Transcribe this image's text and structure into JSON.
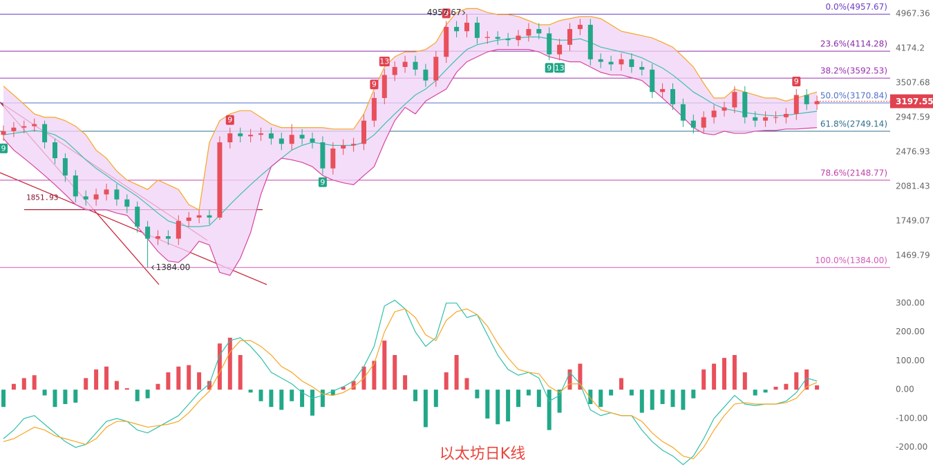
{
  "chart_data": [
    {
      "type": "candlestick",
      "log_scale": true,
      "ylim": [
        1324,
        5325
      ],
      "yticks": [
        4967.36,
        4174.2,
        3507.68,
        2947.59,
        2476.93,
        2081.43,
        1749.07,
        1469.79
      ],
      "up_color": "#e8505b",
      "down_color": "#22a889",
      "ohlc": [
        [
          2700,
          2830,
          2620,
          2750
        ],
        [
          2750,
          2880,
          2670,
          2800
        ],
        [
          2800,
          2900,
          2720,
          2820
        ],
        [
          2820,
          2930,
          2740,
          2850
        ],
        [
          2850,
          2900,
          2520,
          2600
        ],
        [
          2600,
          2650,
          2330,
          2400
        ],
        [
          2400,
          2460,
          2130,
          2200
        ],
        [
          2200,
          2260,
          1920,
          1980
        ],
        [
          1980,
          2040,
          1890,
          1950
        ],
        [
          1950,
          2060,
          1890,
          2000
        ],
        [
          2000,
          2110,
          1940,
          2050
        ],
        [
          2050,
          2110,
          1890,
          1950
        ],
        [
          1950,
          2000,
          1820,
          1880
        ],
        [
          1880,
          1930,
          1650,
          1700
        ],
        [
          1700,
          1750,
          1384,
          1600
        ],
        [
          1600,
          1670,
          1550,
          1620
        ],
        [
          1620,
          1670,
          1550,
          1600
        ],
        [
          1600,
          1800,
          1550,
          1750
        ],
        [
          1750,
          1830,
          1700,
          1780
        ],
        [
          1780,
          1850,
          1730,
          1800
        ],
        [
          1800,
          1850,
          1720,
          1780
        ],
        [
          1780,
          2680,
          1760,
          2600
        ],
        [
          2600,
          2800,
          2520,
          2720
        ],
        [
          2720,
          2800,
          2600,
          2680
        ],
        [
          2680,
          2780,
          2600,
          2700
        ],
        [
          2700,
          2800,
          2620,
          2720
        ],
        [
          2720,
          2800,
          2570,
          2650
        ],
        [
          2650,
          2730,
          2500,
          2580
        ],
        [
          2580,
          2850,
          2500,
          2700
        ],
        [
          2700,
          2780,
          2570,
          2650
        ],
        [
          2650,
          2730,
          2520,
          2600
        ],
        [
          2600,
          2680,
          2210,
          2280
        ],
        [
          2280,
          2600,
          2210,
          2520
        ],
        [
          2520,
          2640,
          2440,
          2560
        ],
        [
          2560,
          2660,
          2480,
          2580
        ],
        [
          2580,
          2990,
          2500,
          2900
        ],
        [
          2900,
          3350,
          2810,
          3250
        ],
        [
          3250,
          3760,
          3150,
          3650
        ],
        [
          3650,
          3910,
          3540,
          3800
        ],
        [
          3800,
          4020,
          3690,
          3900
        ],
        [
          3900,
          4020,
          3640,
          3750
        ],
        [
          3750,
          3860,
          3440,
          3550
        ],
        [
          3550,
          4120,
          3440,
          4000
        ],
        [
          4000,
          4790,
          3880,
          4650
        ],
        [
          4650,
          4790,
          4410,
          4550
        ],
        [
          4550,
          4957.67,
          4410,
          4750
        ],
        [
          4750,
          4890,
          4270,
          4400
        ],
        [
          4400,
          4550,
          4270,
          4420
        ],
        [
          4420,
          4550,
          4250,
          4380
        ],
        [
          4380,
          4510,
          4220,
          4350
        ],
        [
          4350,
          4580,
          4220,
          4450
        ],
        [
          4450,
          4740,
          4320,
          4600
        ],
        [
          4600,
          4740,
          4370,
          4500
        ],
        [
          4500,
          4640,
          3930,
          4050
        ],
        [
          4050,
          4380,
          3930,
          4250
        ],
        [
          4250,
          4740,
          4120,
          4600
        ],
        [
          4600,
          4840,
          4460,
          4700
        ],
        [
          4700,
          4840,
          3830,
          3950
        ],
        [
          3950,
          4070,
          3780,
          3900
        ],
        [
          3900,
          4020,
          3730,
          3850
        ],
        [
          3850,
          4070,
          3730,
          3950
        ],
        [
          3950,
          4070,
          3690,
          3800
        ],
        [
          3800,
          3910,
          3640,
          3750
        ],
        [
          3750,
          3860,
          3250,
          3350
        ],
        [
          3350,
          3500,
          3250,
          3400
        ],
        [
          3400,
          3500,
          3060,
          3150
        ],
        [
          3150,
          3240,
          2810,
          2900
        ],
        [
          2900,
          2990,
          2720,
          2800
        ],
        [
          2800,
          3040,
          2720,
          2950
        ],
        [
          2950,
          3140,
          2860,
          3050
        ],
        [
          3050,
          3190,
          2960,
          3100
        ],
        [
          3100,
          3450,
          3010,
          3350
        ],
        [
          3350,
          3450,
          2860,
          2950
        ],
        [
          2950,
          3040,
          2810,
          2900
        ],
        [
          2900,
          3040,
          2810,
          2950
        ],
        [
          2950,
          3040,
          2860,
          2950
        ],
        [
          2950,
          3090,
          2860,
          3000
        ],
        [
          3000,
          3400,
          2910,
          3300
        ],
        [
          3300,
          3400,
          3060,
          3150
        ],
        [
          3150,
          3290,
          3060,
          3197.55
        ]
      ],
      "boll_upper": {
        "color": "#f5a623",
        "values": [
          3450,
          3300,
          3150,
          3000,
          2950,
          2950,
          2900,
          2820,
          2700,
          2500,
          2400,
          2250,
          2150,
          2100,
          2050,
          2150,
          2100,
          2050,
          1900,
          1850,
          2600,
          2900,
          3000,
          3050,
          3050,
          2950,
          2850,
          2800,
          2800,
          2800,
          2800,
          2800,
          2780,
          2780,
          2780,
          3000,
          3400,
          3800,
          4000,
          4100,
          4100,
          4150,
          4300,
          4700,
          5000,
          5100,
          5100,
          5000,
          4950,
          4950,
          4900,
          4800,
          4700,
          4700,
          4800,
          4850,
          4900,
          4900,
          4850,
          4700,
          4550,
          4500,
          4450,
          4400,
          4300,
          4200,
          4000,
          3800,
          3500,
          3250,
          3250,
          3400,
          3350,
          3300,
          3250,
          3250,
          3200,
          3250,
          3300,
          3350
        ]
      },
      "boll_mid": {
        "color": "#3dbfb0",
        "values": [
          2700,
          2720,
          2740,
          2760,
          2740,
          2700,
          2620,
          2500,
          2380,
          2280,
          2200,
          2120,
          2050,
          1980,
          1900,
          1820,
          1750,
          1720,
          1700,
          1700,
          1710,
          1800,
          1900,
          2000,
          2100,
          2200,
          2300,
          2400,
          2500,
          2560,
          2600,
          2580,
          2560,
          2560,
          2560,
          2600,
          2700,
          2850,
          3000,
          3150,
          3300,
          3400,
          3550,
          3750,
          3950,
          4150,
          4250,
          4300,
          4350,
          4380,
          4400,
          4420,
          4420,
          4380,
          4350,
          4350,
          4380,
          4300,
          4200,
          4150,
          4100,
          4050,
          3980,
          3880,
          3780,
          3650,
          3500,
          3350,
          3250,
          3150,
          3080,
          3050,
          3020,
          3000,
          2980,
          2970,
          2980,
          3000,
          3020,
          3040
        ]
      },
      "boll_lower": {
        "color": "#d6449e",
        "values": [
          2650,
          2500,
          2400,
          2300,
          2200,
          2100,
          2000,
          1900,
          1850,
          1850,
          1850,
          1820,
          1800,
          1700,
          1600,
          1500,
          1430,
          1420,
          1480,
          1580,
          1550,
          1350,
          1330,
          1450,
          1650,
          2000,
          2300,
          2400,
          2380,
          2350,
          2300,
          2200,
          2150,
          2120,
          2100,
          2200,
          2300,
          2600,
          2900,
          3100,
          3000,
          3200,
          3300,
          3400,
          3700,
          3900,
          4000,
          4100,
          4150,
          4150,
          4150,
          4150,
          4100,
          4000,
          3950,
          3900,
          3900,
          3800,
          3700,
          3650,
          3650,
          3600,
          3550,
          3400,
          3250,
          3100,
          2950,
          2800,
          2720,
          2700,
          2750,
          2720,
          2720,
          2750,
          2760,
          2760,
          2780,
          2780,
          2790,
          2800
        ]
      },
      "fib_levels": [
        {
          "label": "0.0%(4957.67)",
          "value": 4957.67,
          "color": "#6a3fc4"
        },
        {
          "label": "23.6%(4114.28)",
          "value": 4114.28,
          "color": "#8a2aa8"
        },
        {
          "label": "38.2%(3592.53)",
          "value": 3592.53,
          "color": "#9b2fb0"
        },
        {
          "label": "50.0%(3170.84)",
          "value": 3170.84,
          "color": "#4f72c9"
        },
        {
          "label": "61.8%(2749.14)",
          "value": 2749.14,
          "color": "#2f6f8f"
        },
        {
          "label": "78.6%(2148.77)",
          "value": 2148.77,
          "color": "#c03fa6"
        },
        {
          "label": "100.0%(1384.00)",
          "value": 1384.0,
          "color": "#d45cb8"
        }
      ],
      "level": 1851.93,
      "low_label": {
        "value": 1384,
        "label": "1384.00"
      },
      "td_marks": [
        {
          "label": "9",
          "candle": 0,
          "side": "down"
        },
        {
          "label": "9",
          "candle": 22,
          "side": "up"
        },
        {
          "label": "9",
          "candle": 31,
          "side": "down"
        },
        {
          "label": "9",
          "candle": 36,
          "side": "up"
        },
        {
          "label": "13",
          "candle": 37,
          "side": "up"
        },
        {
          "label": "9",
          "candle": 43,
          "side": "up"
        },
        {
          "label": "9",
          "candle": 53,
          "side": "down"
        },
        {
          "label": "13",
          "candle": 54,
          "side": "down"
        },
        {
          "label": "9",
          "candle": 77,
          "side": "up"
        }
      ],
      "title": "以太坊日K线"
    },
    {
      "type": "macd",
      "ylim": [
        -275,
        345
      ],
      "yticks": [
        {
          "value": 300,
          "label": "300.00"
        },
        {
          "value": 200,
          "label": "200.00"
        },
        {
          "value": 100,
          "label": "100.00"
        },
        {
          "value": 0,
          "label": "0.00"
        },
        {
          "value": -100,
          "label": "-100.00"
        },
        {
          "value": -200,
          "label": "-200.00"
        }
      ],
      "histogram": [
        -60,
        20,
        40,
        50,
        -20,
        -60,
        -50,
        -45,
        40,
        70,
        80,
        30,
        5,
        -40,
        -30,
        20,
        60,
        80,
        85,
        60,
        30,
        160,
        180,
        120,
        -10,
        -40,
        -60,
        -70,
        -40,
        -60,
        -90,
        -60,
        -20,
        10,
        30,
        80,
        100,
        170,
        120,
        50,
        -40,
        -130,
        -60,
        60,
        120,
        40,
        -30,
        -100,
        -120,
        -110,
        -60,
        -20,
        -60,
        -140,
        -80,
        70,
        90,
        -50,
        -60,
        -20,
        40,
        -20,
        -80,
        -70,
        -50,
        -60,
        -70,
        -30,
        70,
        90,
        110,
        120,
        60,
        -20,
        -10,
        10,
        20,
        60,
        70,
        15
      ],
      "dif": {
        "color": "#2fbfa8",
        "values": [
          -170,
          -140,
          -100,
          -90,
          -120,
          -150,
          -180,
          -200,
          -190,
          -150,
          -110,
          -100,
          -110,
          -140,
          -150,
          -130,
          -110,
          -90,
          -50,
          -10,
          20,
          120,
          170,
          180,
          150,
          110,
          60,
          40,
          20,
          -10,
          -30,
          -20,
          -5,
          10,
          30,
          80,
          150,
          290,
          310,
          280,
          200,
          150,
          180,
          300,
          300,
          250,
          260,
          190,
          120,
          70,
          50,
          60,
          40,
          -40,
          -20,
          60,
          20,
          -70,
          -90,
          -80,
          -90,
          -90,
          -140,
          -180,
          -210,
          -230,
          -260,
          -230,
          -170,
          -100,
          -60,
          -20,
          -50,
          -55,
          -50,
          -50,
          -40,
          -10,
          40,
          30
        ]
      },
      "dea": {
        "color": "#f5a623",
        "values": [
          -180,
          -170,
          -150,
          -130,
          -140,
          -160,
          -170,
          -180,
          -190,
          -170,
          -130,
          -110,
          -110,
          -120,
          -130,
          -125,
          -120,
          -110,
          -80,
          -40,
          -5,
          60,
          130,
          170,
          170,
          150,
          120,
          80,
          60,
          30,
          10,
          -15,
          -20,
          -10,
          10,
          40,
          90,
          200,
          270,
          280,
          250,
          190,
          170,
          240,
          270,
          280,
          260,
          220,
          160,
          110,
          70,
          60,
          55,
          10,
          -10,
          20,
          20,
          -30,
          -70,
          -80,
          -90,
          -90,
          -110,
          -150,
          -180,
          -200,
          -230,
          -240,
          -200,
          -140,
          -90,
          -50,
          -45,
          -50,
          -50,
          -50,
          -45,
          -30,
          10,
          25
        ]
      },
      "up_color": "#e8505b",
      "down_color": "#22a889"
    }
  ]
}
